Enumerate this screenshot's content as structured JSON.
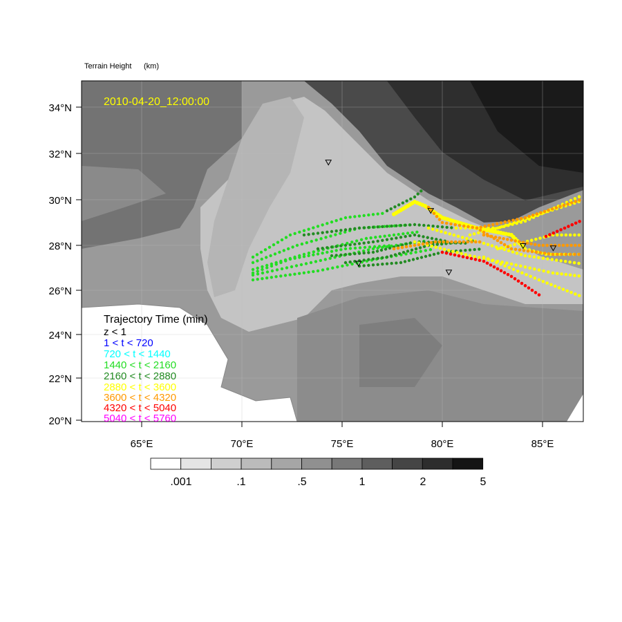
{
  "title": "Terrain Height",
  "units": "(km)",
  "timestamp": "2010-04-20_12:00:00",
  "timestamp_color": "#ffff00",
  "lat_labels": [
    "34°N",
    "32°N",
    "30°N",
    "28°N",
    "26°N",
    "24°N",
    "22°N",
    "20°N"
  ],
  "lon_labels": [
    "65°E",
    "70°E",
    "75°E",
    "80°E",
    "85°E"
  ],
  "colorbar": {
    "colors": [
      "#ffffff",
      "#e5e5e5",
      "#cfcfcf",
      "#bbbbbb",
      "#a6a6a6",
      "#909090",
      "#787878",
      "#5e5e5e",
      "#454545",
      "#2d2d2d",
      "#141414"
    ],
    "labels": [
      ".001",
      ".1",
      ".5",
      "1",
      "2",
      "5"
    ]
  },
  "legend": {
    "title": "Trajectory Time (min)",
    "items": [
      {
        "label": "z < 1",
        "color": "#000000"
      },
      {
        "label": "1 < t < 720",
        "color": "#0000ff"
      },
      {
        "label": "720 < t < 1440",
        "color": "#00ffff"
      },
      {
        "label": "1440 < t < 2160",
        "color": "#22dd22"
      },
      {
        "label": "2160 < t < 2880",
        "color": "#228b22"
      },
      {
        "label": "2880 < t < 3600",
        "color": "#ffff00"
      },
      {
        "label": "3600 < t < 4320",
        "color": "#ff9900"
      },
      {
        "label": "4320 < t < 5040",
        "color": "#ff0000"
      },
      {
        "label": "5040 < t < 5760",
        "color": "#ff00ff"
      }
    ]
  },
  "map_extent": {
    "lon_min": 62,
    "lon_max": 87,
    "lat_min": 19.7,
    "lat_max": 35.2
  },
  "stations": [
    {
      "lon": 74.3,
      "lat": 31.5
    },
    {
      "lon": 79.4,
      "lat": 29.3
    },
    {
      "lon": 75.8,
      "lat": 26.9
    },
    {
      "lon": 80.3,
      "lat": 26.5
    },
    {
      "lon": 84.0,
      "lat": 27.7
    },
    {
      "lon": 85.5,
      "lat": 27.6
    }
  ]
}
